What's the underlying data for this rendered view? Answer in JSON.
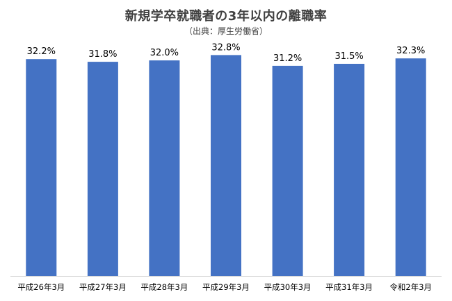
{
  "chart_data": {
    "type": "bar",
    "title": "新規学卒就職者の3年以内の離職率",
    "subtitle": "（出典：厚生労働省）",
    "categories": [
      "平成26年3月",
      "平成27年3月",
      "平成28年3月",
      "平成29年3月",
      "平成30年3月",
      "平成31年3月",
      "令和2年3月"
    ],
    "values": [
      32.2,
      31.8,
      32.0,
      32.8,
      31.2,
      31.5,
      32.3
    ],
    "value_labels": [
      "32.2%",
      "31.8%",
      "32.0%",
      "32.8%",
      "31.2%",
      "31.5%",
      "32.3%"
    ],
    "unit": "%",
    "ylim": [
      0,
      35
    ],
    "grid": false,
    "legend": "none",
    "colors": {
      "bar": "#4472c4"
    }
  }
}
